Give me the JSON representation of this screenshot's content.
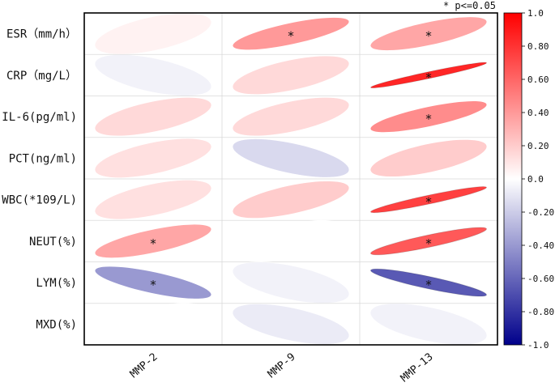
{
  "chart_data": {
    "type": "heatmap",
    "subtype": "ellipse-correlation-matrix",
    "title": "",
    "significance_note": "* p<=0.05",
    "rows": [
      "ESR（mm/h）",
      "CRP（mg/L）",
      "IL-6(pg/ml)",
      "PCT(ng/ml)",
      "WBC(*109/L)",
      "NEUT(%)",
      "LYM(%)",
      "MXD(%)"
    ],
    "columns": [
      "MMP-2",
      "MMP-9",
      "MMP-13"
    ],
    "values": [
      [
        0.05,
        0.4,
        0.35
      ],
      [
        -0.05,
        0.15,
        0.85
      ],
      [
        0.15,
        0.15,
        0.45
      ],
      [
        0.12,
        -0.15,
        0.2
      ],
      [
        0.12,
        0.2,
        0.75
      ],
      [
        0.35,
        0.0,
        0.65
      ],
      [
        -0.4,
        -0.05,
        -0.65
      ],
      [
        0.0,
        -0.08,
        -0.05
      ]
    ],
    "significant": [
      [
        false,
        true,
        true
      ],
      [
        false,
        false,
        true
      ],
      [
        false,
        false,
        true
      ],
      [
        false,
        false,
        false
      ],
      [
        false,
        false,
        true
      ],
      [
        true,
        false,
        true
      ],
      [
        true,
        false,
        true
      ],
      [
        false,
        false,
        false
      ]
    ],
    "colorbar": {
      "range": [
        -1.0,
        1.0
      ],
      "ticks": [
        1.0,
        0.8,
        0.6,
        0.4,
        0.2,
        0.0,
        -0.2,
        -0.4,
        -0.6,
        -0.8,
        -1.0
      ],
      "tick_labels": [
        "1.0",
        "0.80",
        "0.60",
        "0.40",
        "0.20",
        "0.0",
        "-0.20",
        "-0.40",
        "-0.60",
        "-0.80",
        "-1.0"
      ],
      "colors": {
        "low": "#00008b",
        "mid": "#ffffff",
        "high": "#ff0000"
      }
    }
  }
}
